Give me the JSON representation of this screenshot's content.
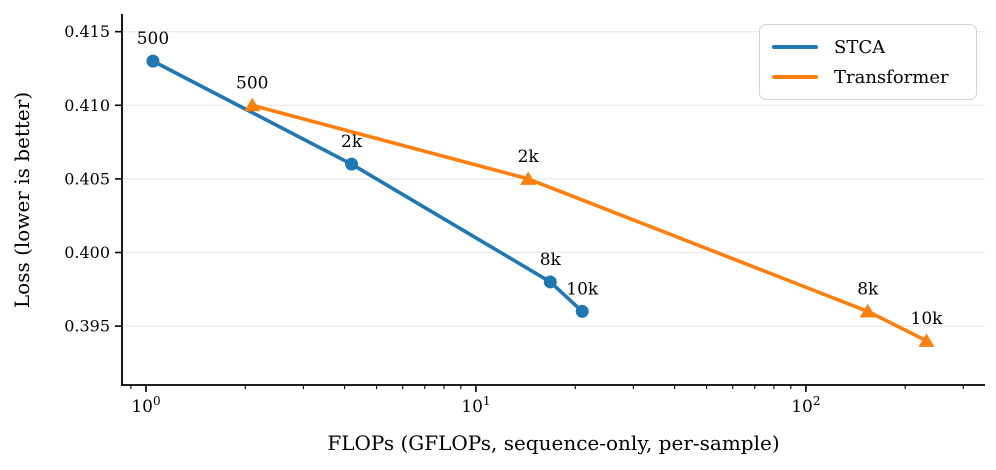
{
  "chart_data": {
    "type": "line",
    "title": "",
    "xlabel": "FLOPs (GFLOPs, sequence-only, per-sample)",
    "ylabel": "Loss (lower is better)",
    "x_scale": "log",
    "xlim": [
      0.846,
      349
    ],
    "ylim": [
      0.391,
      0.4162
    ],
    "grid": "horizontal-only",
    "grid_color": "#ececec",
    "y_ticks": [
      0.395,
      0.4,
      0.405,
      0.41,
      0.415
    ],
    "y_tick_labels": [
      "0.395",
      "0.400",
      "0.405",
      "0.410",
      "0.415"
    ],
    "x_major_ticks": [
      {
        "value": 1,
        "base": "10",
        "exp": "0"
      },
      {
        "value": 10,
        "base": "10",
        "exp": "1"
      },
      {
        "value": 100,
        "base": "10",
        "exp": "2"
      }
    ],
    "x_minor_ticks": [
      0.9,
      2,
      3,
      4,
      5,
      6,
      7,
      8,
      9,
      20,
      30,
      40,
      50,
      60,
      70,
      80,
      90,
      200,
      300
    ],
    "legend": {
      "position": "upper-right",
      "items": [
        "STCA",
        "Transformer"
      ]
    },
    "series": [
      {
        "name": "STCA",
        "color": "#1f77b4",
        "marker": "circle",
        "points": [
          {
            "x": 1.05,
            "y": 0.413,
            "label": "500"
          },
          {
            "x": 4.2,
            "y": 0.406,
            "label": "2k"
          },
          {
            "x": 16.8,
            "y": 0.398,
            "label": "8k"
          },
          {
            "x": 21,
            "y": 0.396,
            "label": "10k"
          }
        ]
      },
      {
        "name": "Transformer",
        "color": "#ff7f0e",
        "marker": "triangle",
        "points": [
          {
            "x": 2.1,
            "y": 0.41,
            "label": "500"
          },
          {
            "x": 14.4,
            "y": 0.405,
            "label": "2k"
          },
          {
            "x": 154,
            "y": 0.396,
            "label": "8k"
          },
          {
            "x": 232,
            "y": 0.394,
            "label": "10k"
          }
        ]
      }
    ]
  }
}
